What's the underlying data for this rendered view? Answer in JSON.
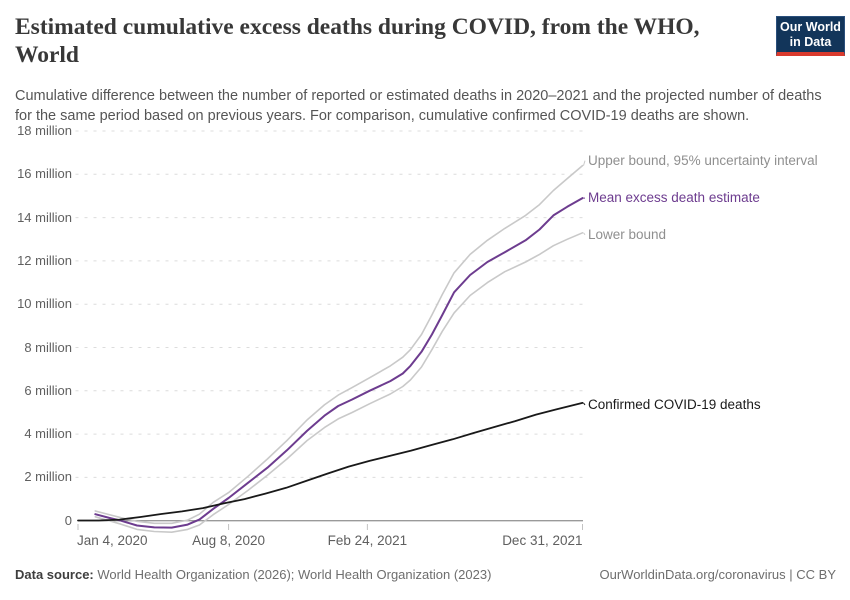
{
  "header": {
    "title": "Estimated cumulative excess deaths during COVID, from the WHO, World",
    "subtitle": "Cumulative difference between the number of reported or estimated deaths in 2020–2021 and the projected number of deaths for the same period based on previous years. For comparison, cumulative confirmed COVID-19 deaths are shown.",
    "logo": {
      "line1": "Our World",
      "line2": "in Data"
    }
  },
  "chart_data": {
    "type": "line",
    "title": "Estimated cumulative excess deaths during COVID, from the WHO, World",
    "xlabel": "",
    "ylabel": "",
    "grid": "dashed-horizontal",
    "legend_position": "right-of-line-ends",
    "x_axis": {
      "unit": "days since Jan 4, 2020",
      "range_days": [
        0,
        727
      ],
      "ticks": [
        {
          "label": "Jan 4, 2020",
          "day": 0
        },
        {
          "label": "Aug 8, 2020",
          "day": 217
        },
        {
          "label": "Feb 24, 2021",
          "day": 417
        },
        {
          "label": "Dec 31, 2021",
          "day": 727
        }
      ]
    },
    "y_axis": {
      "unit": "deaths",
      "range_millions": [
        0,
        18
      ],
      "ticks": [
        {
          "label": "0",
          "value": 0
        },
        {
          "label": "2 million",
          "value": 2
        },
        {
          "label": "4 million",
          "value": 4
        },
        {
          "label": "6 million",
          "value": 6
        },
        {
          "label": "8 million",
          "value": 8
        },
        {
          "label": "10 million",
          "value": 10
        },
        {
          "label": "12 million",
          "value": 12
        },
        {
          "label": "14 million",
          "value": 14
        },
        {
          "label": "16 million",
          "value": 16
        },
        {
          "label": "18 million",
          "value": 18
        }
      ]
    },
    "series": [
      {
        "name": "upper-bound",
        "label": "Upper bound, 95% uncertainty interval",
        "color": "#c9c9c9",
        "label_color": "#8f8f8f",
        "width": 1.6,
        "label_dy": -5,
        "points_day_millions": [
          [
            25,
            0.45
          ],
          [
            45,
            0.28
          ],
          [
            62,
            0.14
          ],
          [
            85,
            -0.03
          ],
          [
            110,
            -0.12
          ],
          [
            135,
            -0.12
          ],
          [
            158,
            0.03
          ],
          [
            175,
            0.3
          ],
          [
            195,
            0.85
          ],
          [
            217,
            1.3
          ],
          [
            245,
            2.05
          ],
          [
            273,
            2.85
          ],
          [
            301,
            3.7
          ],
          [
            330,
            4.65
          ],
          [
            355,
            5.35
          ],
          [
            375,
            5.8
          ],
          [
            395,
            6.15
          ],
          [
            420,
            6.6
          ],
          [
            450,
            7.15
          ],
          [
            468,
            7.55
          ],
          [
            479,
            7.9
          ],
          [
            495,
            8.6
          ],
          [
            510,
            9.5
          ],
          [
            525,
            10.45
          ],
          [
            542,
            11.45
          ],
          [
            565,
            12.3
          ],
          [
            590,
            12.95
          ],
          [
            615,
            13.5
          ],
          [
            645,
            14.1
          ],
          [
            665,
            14.6
          ],
          [
            685,
            15.25
          ],
          [
            705,
            15.8
          ],
          [
            727,
            16.4
          ]
        ]
      },
      {
        "name": "mean-excess",
        "label": "Mean excess death estimate",
        "color": "#6d3c8f",
        "label_color": "#6d3c8f",
        "width": 2,
        "label_dy": 0,
        "points_day_millions": [
          [
            25,
            0.3
          ],
          [
            45,
            0.13
          ],
          [
            62,
            0
          ],
          [
            85,
            -0.22
          ],
          [
            110,
            -0.31
          ],
          [
            135,
            -0.32
          ],
          [
            158,
            -0.18
          ],
          [
            175,
            0.05
          ],
          [
            195,
            0.55
          ],
          [
            217,
            1.05
          ],
          [
            245,
            1.75
          ],
          [
            273,
            2.45
          ],
          [
            301,
            3.25
          ],
          [
            330,
            4.15
          ],
          [
            355,
            4.85
          ],
          [
            375,
            5.3
          ],
          [
            395,
            5.6
          ],
          [
            420,
            6.0
          ],
          [
            450,
            6.45
          ],
          [
            468,
            6.8
          ],
          [
            479,
            7.15
          ],
          [
            495,
            7.8
          ],
          [
            510,
            8.6
          ],
          [
            525,
            9.5
          ],
          [
            542,
            10.55
          ],
          [
            565,
            11.35
          ],
          [
            590,
            11.95
          ],
          [
            615,
            12.4
          ],
          [
            645,
            12.95
          ],
          [
            665,
            13.45
          ],
          [
            685,
            14.1
          ],
          [
            705,
            14.5
          ],
          [
            727,
            14.9
          ]
        ]
      },
      {
        "name": "lower-bound",
        "label": "Lower bound",
        "color": "#c9c9c9",
        "label_color": "#8f8f8f",
        "width": 1.6,
        "label_dy": 2,
        "points_day_millions": [
          [
            25,
            0.18
          ],
          [
            45,
            0.0
          ],
          [
            62,
            -0.16
          ],
          [
            85,
            -0.4
          ],
          [
            110,
            -0.5
          ],
          [
            135,
            -0.53
          ],
          [
            158,
            -0.4
          ],
          [
            175,
            -0.2
          ],
          [
            195,
            0.28
          ],
          [
            217,
            0.75
          ],
          [
            245,
            1.4
          ],
          [
            273,
            2.1
          ],
          [
            301,
            2.85
          ],
          [
            330,
            3.7
          ],
          [
            355,
            4.3
          ],
          [
            375,
            4.7
          ],
          [
            395,
            5.0
          ],
          [
            420,
            5.4
          ],
          [
            450,
            5.85
          ],
          [
            468,
            6.2
          ],
          [
            479,
            6.5
          ],
          [
            495,
            7.1
          ],
          [
            510,
            7.9
          ],
          [
            525,
            8.75
          ],
          [
            542,
            9.6
          ],
          [
            565,
            10.4
          ],
          [
            590,
            11.0
          ],
          [
            615,
            11.5
          ],
          [
            645,
            11.95
          ],
          [
            665,
            12.3
          ],
          [
            685,
            12.7
          ],
          [
            705,
            13.0
          ],
          [
            727,
            13.3
          ]
        ]
      },
      {
        "name": "confirmed-deaths",
        "label": "Confirmed COVID-19 deaths",
        "color": "#191919",
        "label_color": "#1a1a1a",
        "width": 1.8,
        "label_dy": 2,
        "points_day_millions": [
          [
            0,
            0.01
          ],
          [
            30,
            0.01
          ],
          [
            60,
            0.05
          ],
          [
            90,
            0.17
          ],
          [
            120,
            0.31
          ],
          [
            150,
            0.43
          ],
          [
            180,
            0.58
          ],
          [
            210,
            0.8
          ],
          [
            240,
            1.0
          ],
          [
            270,
            1.25
          ],
          [
            300,
            1.52
          ],
          [
            330,
            1.85
          ],
          [
            360,
            2.18
          ],
          [
            390,
            2.5
          ],
          [
            420,
            2.76
          ],
          [
            450,
            3.0
          ],
          [
            480,
            3.24
          ],
          [
            510,
            3.5
          ],
          [
            540,
            3.76
          ],
          [
            570,
            4.05
          ],
          [
            600,
            4.33
          ],
          [
            630,
            4.6
          ],
          [
            660,
            4.9
          ],
          [
            690,
            5.15
          ],
          [
            727,
            5.44
          ]
        ]
      }
    ]
  },
  "footer": {
    "source_prefix": "Data source:",
    "source_text": " World Health Organization (2026); World Health Organization (2023)",
    "right_text": "OurWorldinData.org/coronavirus | CC BY"
  },
  "colors": {
    "accent_purple": "#6d3c8f",
    "bound_gray": "#c9c9c9",
    "grid_gray": "#dcdcdc",
    "axis_line": "#9a9a9a",
    "logo_navy": "#12355a",
    "logo_red": "#d93a2d"
  }
}
